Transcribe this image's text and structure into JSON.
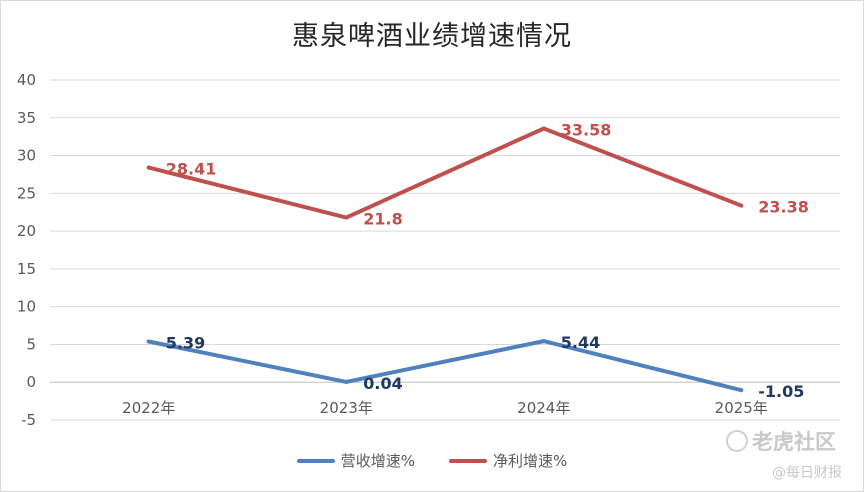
{
  "chart_data": {
    "type": "line",
    "title": "惠泉啤酒业绩增速情况",
    "categories": [
      "2022年",
      "2023年",
      "2024年",
      "2025年"
    ],
    "ylim": [
      -5,
      40
    ],
    "yticks": [
      -5,
      0,
      5,
      10,
      15,
      20,
      25,
      30,
      35,
      40
    ],
    "grid": true,
    "legend_position": "bottom",
    "series": [
      {
        "name": "营收增速%",
        "color": "#4f81bd",
        "label_color": "#1f3864",
        "values": [
          5.39,
          0.04,
          5.44,
          -1.05
        ],
        "labels": [
          "5.39",
          "0.04",
          "5.44",
          "-1.05"
        ]
      },
      {
        "name": "净利增速%",
        "color": "#c0504d",
        "label_color": "#c0504d",
        "values": [
          28.41,
          21.8,
          33.58,
          23.38
        ],
        "labels": [
          "28.41",
          "21.8",
          "33.58",
          "23.38"
        ]
      }
    ]
  },
  "watermark": {
    "brand": "老虎社区",
    "source": "@每日财报"
  }
}
